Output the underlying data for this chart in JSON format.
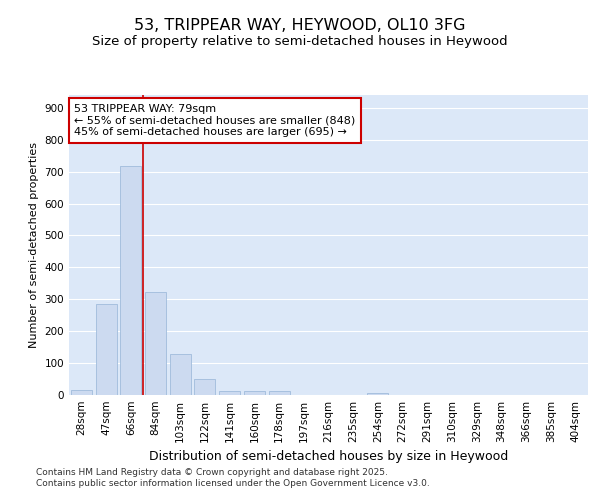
{
  "title_line1": "53, TRIPPEAR WAY, HEYWOOD, OL10 3FG",
  "title_line2": "Size of property relative to semi-detached houses in Heywood",
  "xlabel": "Distribution of semi-detached houses by size in Heywood",
  "ylabel": "Number of semi-detached properties",
  "categories": [
    "28sqm",
    "47sqm",
    "66sqm",
    "84sqm",
    "103sqm",
    "122sqm",
    "141sqm",
    "160sqm",
    "178sqm",
    "197sqm",
    "216sqm",
    "235sqm",
    "254sqm",
    "272sqm",
    "291sqm",
    "310sqm",
    "329sqm",
    "348sqm",
    "366sqm",
    "385sqm",
    "404sqm"
  ],
  "values": [
    16,
    285,
    718,
    322,
    130,
    50,
    13,
    13,
    13,
    0,
    0,
    0,
    5,
    0,
    0,
    0,
    0,
    0,
    0,
    0,
    0
  ],
  "bar_color": "#ccdaf0",
  "bar_edge_color": "#a0bcdc",
  "vline_x": 2.5,
  "vline_color": "#cc0000",
  "annotation_text": "53 TRIPPEAR WAY: 79sqm\n← 55% of semi-detached houses are smaller (848)\n45% of semi-detached houses are larger (695) →",
  "annotation_box_facecolor": "#ffffff",
  "annotation_box_edgecolor": "#cc0000",
  "ylim": [
    0,
    940
  ],
  "yticks": [
    0,
    100,
    200,
    300,
    400,
    500,
    600,
    700,
    800,
    900
  ],
  "plot_bg_color": "#dce8f8",
  "grid_color": "#ffffff",
  "footer_text": "Contains HM Land Registry data © Crown copyright and database right 2025.\nContains public sector information licensed under the Open Government Licence v3.0.",
  "title_fontsize": 11.5,
  "subtitle_fontsize": 9.5,
  "ylabel_fontsize": 8,
  "xlabel_fontsize": 9,
  "tick_fontsize": 7.5,
  "annotation_fontsize": 8,
  "footer_fontsize": 6.5,
  "footer_color": "#333333"
}
